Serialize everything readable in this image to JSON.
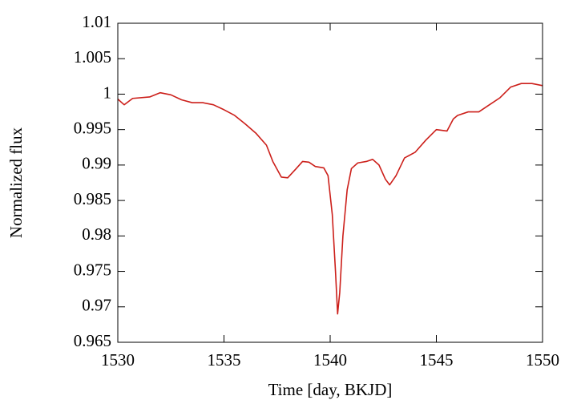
{
  "chart_data": {
    "type": "line",
    "xlabel": "Time [day, BKJD]",
    "ylabel": "Normalized flux",
    "xlim": [
      1530,
      1550
    ],
    "xticks": [
      1530,
      1535,
      1540,
      1545,
      1550
    ],
    "ylim": [
      0.965,
      1.01
    ],
    "yticks": [
      0.965,
      0.97,
      0.975,
      0.98,
      0.985,
      0.99,
      0.995,
      1,
      1.005,
      1.01
    ],
    "grid": false,
    "series": [
      {
        "color": "#cc1f1a",
        "x": [
          1530,
          1530.3,
          1530.7,
          1531.5,
          1532,
          1532.5,
          1533,
          1533.5,
          1534,
          1534.5,
          1535,
          1535.5,
          1536,
          1536.5,
          1537,
          1537.3,
          1537.7,
          1538,
          1538.4,
          1538.7,
          1539,
          1539.3,
          1539.7,
          1539.9,
          1540.1,
          1540.25,
          1540.35,
          1540.45,
          1540.6,
          1540.8,
          1541,
          1541.3,
          1541.7,
          1542,
          1542.3,
          1542.6,
          1542.8,
          1543.1,
          1543.5,
          1544,
          1544.5,
          1545,
          1545.5,
          1545.8,
          1546,
          1546.5,
          1547,
          1547.5,
          1548,
          1548.5,
          1549,
          1549.5,
          1550
        ],
        "values": [
          0.9993,
          0.9985,
          0.9994,
          0.9996,
          1.0002,
          0.9999,
          0.9992,
          0.9988,
          0.9988,
          0.9985,
          0.9978,
          0.997,
          0.9958,
          0.9945,
          0.9928,
          0.9905,
          0.9883,
          0.9882,
          0.9895,
          0.9905,
          0.9904,
          0.9898,
          0.9896,
          0.9885,
          0.983,
          0.975,
          0.969,
          0.972,
          0.98,
          0.9865,
          0.9895,
          0.9903,
          0.9905,
          0.9908,
          0.99,
          0.988,
          0.9872,
          0.9885,
          0.991,
          0.9918,
          0.9935,
          0.995,
          0.9948,
          0.9965,
          0.997,
          0.9975,
          0.9975,
          0.9985,
          0.9995,
          1.001,
          1.0015,
          1.0015,
          1.0012
        ]
      }
    ]
  }
}
